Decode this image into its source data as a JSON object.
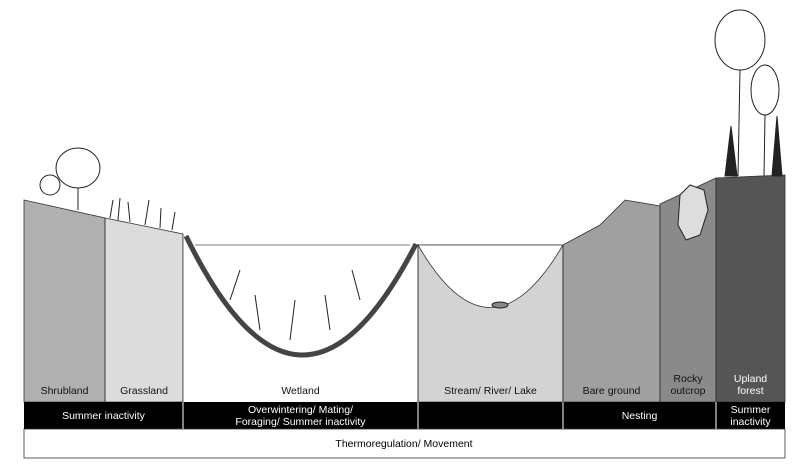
{
  "habitats": [
    {
      "lines": [
        "Shrubland"
      ]
    },
    {
      "lines": [
        "Grassland"
      ]
    },
    {
      "lines": [
        "Wetland"
      ]
    },
    {
      "lines": [
        "Stream/ River/ Lake"
      ]
    },
    {
      "lines": [
        "Bare ground"
      ]
    },
    {
      "lines": [
        "Rocky",
        "outcrop"
      ]
    },
    {
      "lines": [
        "Upland",
        "forest"
      ]
    }
  ],
  "activities": [
    {
      "lines": [
        "Summer inactivity"
      ]
    },
    {
      "lines": [
        "Overwintering/ Mating/",
        "Foraging/ Summer inactivity"
      ]
    },
    {
      "lines": [
        "Nesting"
      ]
    },
    {
      "lines": [
        "Summer",
        "inactivity"
      ]
    }
  ],
  "movement": "Thermoregulation/ Movement"
}
